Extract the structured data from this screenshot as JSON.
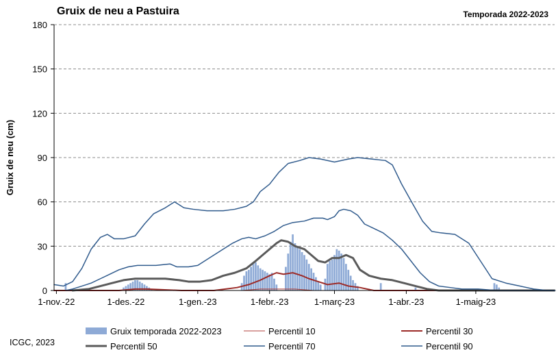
{
  "header": {
    "title": "Gruix de neu a Pastuira",
    "season": "Temporada 2022-2023"
  },
  "footer": {
    "credit": "ICGC, 2023"
  },
  "chart_data": {
    "type": "bar",
    "ylabel": "Gruix de neu (cm)",
    "xlabel": "",
    "ylim": [
      0,
      180
    ],
    "yticks": [
      0,
      30,
      60,
      90,
      120,
      150,
      180
    ],
    "grid": "horizontal dashed",
    "legend_position": "bottom",
    "x_domain": [
      "2022-10-31",
      "2023-06-04"
    ],
    "xticks": [
      {
        "date": "2022-11-01",
        "label": "1-nov.-22"
      },
      {
        "date": "2022-12-01",
        "label": "1-des.-22"
      },
      {
        "date": "2023-01-01",
        "label": "1-gen.-23"
      },
      {
        "date": "2023-02-01",
        "label": "1-febr.-23"
      },
      {
        "date": "2023-03-01",
        "label": "1-març-23"
      },
      {
        "date": "2023-04-01",
        "label": "1-abr.-23"
      },
      {
        "date": "2023-05-01",
        "label": "1-maig-23"
      }
    ],
    "bars": {
      "name": "Gruix temporada 2022-2023",
      "color": "#8eaad6",
      "points": [
        [
          "2022-11-05",
          5
        ],
        [
          "2022-11-30",
          2
        ],
        [
          "2022-12-01",
          3
        ],
        [
          "2022-12-02",
          4
        ],
        [
          "2022-12-03",
          5
        ],
        [
          "2022-12-04",
          6
        ],
        [
          "2022-12-05",
          7
        ],
        [
          "2022-12-06",
          7
        ],
        [
          "2022-12-07",
          6
        ],
        [
          "2022-12-08",
          5
        ],
        [
          "2022-12-09",
          4
        ],
        [
          "2022-12-10",
          3
        ],
        [
          "2022-12-11",
          2
        ],
        [
          "2022-12-12",
          1
        ],
        [
          "2023-01-20",
          5
        ],
        [
          "2023-01-21",
          10
        ],
        [
          "2023-01-22",
          13
        ],
        [
          "2023-01-23",
          14
        ],
        [
          "2023-01-24",
          16
        ],
        [
          "2023-01-25",
          18
        ],
        [
          "2023-01-26",
          19
        ],
        [
          "2023-01-27",
          17
        ],
        [
          "2023-01-28",
          15
        ],
        [
          "2023-01-29",
          14
        ],
        [
          "2023-01-30",
          13
        ],
        [
          "2023-01-31",
          12
        ],
        [
          "2023-02-01",
          11
        ],
        [
          "2023-02-02",
          12
        ],
        [
          "2023-02-03",
          8
        ],
        [
          "2023-02-04",
          4
        ],
        [
          "2023-02-08",
          16
        ],
        [
          "2023-02-09",
          25
        ],
        [
          "2023-02-10",
          33
        ],
        [
          "2023-02-11",
          38
        ],
        [
          "2023-02-12",
          32
        ],
        [
          "2023-02-13",
          29
        ],
        [
          "2023-02-14",
          28
        ],
        [
          "2023-02-15",
          26
        ],
        [
          "2023-02-16",
          24
        ],
        [
          "2023-02-17",
          21
        ],
        [
          "2023-02-18",
          18
        ],
        [
          "2023-02-19",
          15
        ],
        [
          "2023-02-20",
          12
        ],
        [
          "2023-02-21",
          9
        ],
        [
          "2023-02-22",
          6
        ],
        [
          "2023-02-23",
          4
        ],
        [
          "2023-02-25",
          8
        ],
        [
          "2023-02-26",
          18
        ],
        [
          "2023-02-27",
          20
        ],
        [
          "2023-02-28",
          21
        ],
        [
          "2023-03-01",
          24
        ],
        [
          "2023-03-02",
          28
        ],
        [
          "2023-03-03",
          27
        ],
        [
          "2023-03-04",
          25
        ],
        [
          "2023-03-05",
          22
        ],
        [
          "2023-03-06",
          18
        ],
        [
          "2023-03-07",
          14
        ],
        [
          "2023-03-08",
          10
        ],
        [
          "2023-03-09",
          7
        ],
        [
          "2023-03-10",
          5
        ],
        [
          "2023-03-11",
          3
        ],
        [
          "2023-03-21",
          5
        ],
        [
          "2023-04-05",
          2
        ],
        [
          "2023-05-09",
          5
        ],
        [
          "2023-05-10",
          4
        ],
        [
          "2023-05-11",
          2
        ]
      ]
    },
    "series": [
      {
        "name": "Percentil 10",
        "color": "#b2403c",
        "width": 1,
        "points": [
          [
            "2022-10-31",
            0
          ],
          [
            "2023-01-20",
            0
          ],
          [
            "2023-01-28",
            1
          ],
          [
            "2023-02-12",
            1
          ],
          [
            "2023-02-20",
            0
          ],
          [
            "2023-06-04",
            0
          ]
        ]
      },
      {
        "name": "Percentil 30",
        "color": "#9c2a27",
        "width": 2,
        "points": [
          [
            "2022-10-31",
            0
          ],
          [
            "2022-11-28",
            0
          ],
          [
            "2022-12-05",
            1
          ],
          [
            "2022-12-10",
            1
          ],
          [
            "2022-12-25",
            0
          ],
          [
            "2023-01-08",
            0
          ],
          [
            "2023-01-18",
            2
          ],
          [
            "2023-01-23",
            4
          ],
          [
            "2023-01-28",
            7
          ],
          [
            "2023-02-01",
            10
          ],
          [
            "2023-02-04",
            12
          ],
          [
            "2023-02-07",
            11
          ],
          [
            "2023-02-11",
            12
          ],
          [
            "2023-02-15",
            10
          ],
          [
            "2023-02-18",
            8
          ],
          [
            "2023-02-22",
            6
          ],
          [
            "2023-02-26",
            4
          ],
          [
            "2023-03-03",
            5
          ],
          [
            "2023-03-07",
            3
          ],
          [
            "2023-03-12",
            2
          ],
          [
            "2023-03-18",
            0
          ],
          [
            "2023-06-04",
            0
          ]
        ]
      },
      {
        "name": "Percentil 50",
        "color": "#5a5a5a",
        "width": 3,
        "points": [
          [
            "2022-11-08",
            0
          ],
          [
            "2022-11-15",
            1
          ],
          [
            "2022-11-20",
            3
          ],
          [
            "2022-11-25",
            5
          ],
          [
            "2022-11-30",
            7
          ],
          [
            "2022-12-05",
            8
          ],
          [
            "2022-12-12",
            8
          ],
          [
            "2022-12-18",
            8
          ],
          [
            "2022-12-24",
            7
          ],
          [
            "2022-12-28",
            6
          ],
          [
            "2023-01-02",
            6
          ],
          [
            "2023-01-07",
            7
          ],
          [
            "2023-01-12",
            10
          ],
          [
            "2023-01-17",
            12
          ],
          [
            "2023-01-22",
            15
          ],
          [
            "2023-01-26",
            20
          ],
          [
            "2023-01-29",
            24
          ],
          [
            "2023-02-01",
            28
          ],
          [
            "2023-02-04",
            32
          ],
          [
            "2023-02-06",
            34
          ],
          [
            "2023-02-09",
            33
          ],
          [
            "2023-02-12",
            30
          ],
          [
            "2023-02-16",
            28
          ],
          [
            "2023-02-19",
            24
          ],
          [
            "2023-02-22",
            20
          ],
          [
            "2023-02-25",
            19
          ],
          [
            "2023-02-28",
            22
          ],
          [
            "2023-03-03",
            22
          ],
          [
            "2023-03-06",
            24
          ],
          [
            "2023-03-09",
            22
          ],
          [
            "2023-03-12",
            14
          ],
          [
            "2023-03-16",
            10
          ],
          [
            "2023-03-21",
            8
          ],
          [
            "2023-03-26",
            7
          ],
          [
            "2023-03-31",
            5
          ],
          [
            "2023-04-05",
            3
          ],
          [
            "2023-04-10",
            1
          ],
          [
            "2023-04-15",
            0
          ],
          [
            "2023-06-04",
            0
          ]
        ]
      },
      {
        "name": "Percentil 70",
        "color": "#2f5a8c",
        "width": 1.5,
        "points": [
          [
            "2022-11-05",
            0
          ],
          [
            "2022-11-08",
            1
          ],
          [
            "2022-11-12",
            3
          ],
          [
            "2022-11-16",
            5
          ],
          [
            "2022-11-20",
            8
          ],
          [
            "2022-11-24",
            11
          ],
          [
            "2022-11-28",
            14
          ],
          [
            "2022-12-02",
            16
          ],
          [
            "2022-12-06",
            17
          ],
          [
            "2022-12-14",
            17
          ],
          [
            "2022-12-20",
            18
          ],
          [
            "2022-12-23",
            16
          ],
          [
            "2022-12-28",
            16
          ],
          [
            "2023-01-01",
            17
          ],
          [
            "2023-01-04",
            20
          ],
          [
            "2023-01-08",
            24
          ],
          [
            "2023-01-12",
            28
          ],
          [
            "2023-01-16",
            32
          ],
          [
            "2023-01-20",
            35
          ],
          [
            "2023-01-23",
            36
          ],
          [
            "2023-01-26",
            35
          ],
          [
            "2023-01-30",
            37
          ],
          [
            "2023-02-03",
            40
          ],
          [
            "2023-02-07",
            44
          ],
          [
            "2023-02-11",
            46
          ],
          [
            "2023-02-16",
            47
          ],
          [
            "2023-02-20",
            49
          ],
          [
            "2023-02-24",
            49
          ],
          [
            "2023-02-26",
            48
          ],
          [
            "2023-03-01",
            50
          ],
          [
            "2023-03-03",
            54
          ],
          [
            "2023-03-05",
            55
          ],
          [
            "2023-03-08",
            54
          ],
          [
            "2023-03-11",
            51
          ],
          [
            "2023-03-14",
            45
          ],
          [
            "2023-03-18",
            42
          ],
          [
            "2023-03-22",
            39
          ],
          [
            "2023-03-26",
            34
          ],
          [
            "2023-03-30",
            28
          ],
          [
            "2023-04-03",
            20
          ],
          [
            "2023-04-07",
            12
          ],
          [
            "2023-04-11",
            6
          ],
          [
            "2023-04-15",
            3
          ],
          [
            "2023-04-20",
            2
          ],
          [
            "2023-04-25",
            1
          ],
          [
            "2023-05-02",
            1
          ],
          [
            "2023-05-10",
            0
          ],
          [
            "2023-06-04",
            0
          ]
        ]
      },
      {
        "name": "Percentil 90",
        "color": "#2f5a8c",
        "width": 1.5,
        "points": [
          [
            "2022-10-31",
            4
          ],
          [
            "2022-11-04",
            3
          ],
          [
            "2022-11-08",
            6
          ],
          [
            "2022-11-12",
            15
          ],
          [
            "2022-11-16",
            28
          ],
          [
            "2022-11-20",
            36
          ],
          [
            "2022-11-23",
            38
          ],
          [
            "2022-11-26",
            35
          ],
          [
            "2022-11-30",
            35
          ],
          [
            "2022-12-05",
            37
          ],
          [
            "2022-12-09",
            45
          ],
          [
            "2022-12-13",
            52
          ],
          [
            "2022-12-18",
            56
          ],
          [
            "2022-12-22",
            60
          ],
          [
            "2022-12-26",
            56
          ],
          [
            "2022-12-30",
            55
          ],
          [
            "2023-01-05",
            54
          ],
          [
            "2023-01-12",
            54
          ],
          [
            "2023-01-17",
            55
          ],
          [
            "2023-01-22",
            57
          ],
          [
            "2023-01-25",
            60
          ],
          [
            "2023-01-28",
            67
          ],
          [
            "2023-02-01",
            72
          ],
          [
            "2023-02-05",
            80
          ],
          [
            "2023-02-09",
            86
          ],
          [
            "2023-02-14",
            88
          ],
          [
            "2023-02-18",
            90
          ],
          [
            "2023-02-23",
            89
          ],
          [
            "2023-03-01",
            87
          ],
          [
            "2023-03-07",
            89
          ],
          [
            "2023-03-11",
            90
          ],
          [
            "2023-03-17",
            89
          ],
          [
            "2023-03-23",
            88
          ],
          [
            "2023-03-26",
            85
          ],
          [
            "2023-03-30",
            72
          ],
          [
            "2023-04-04",
            58
          ],
          [
            "2023-04-08",
            47
          ],
          [
            "2023-04-12",
            40
          ],
          [
            "2023-04-16",
            39
          ],
          [
            "2023-04-22",
            38
          ],
          [
            "2023-04-28",
            32
          ],
          [
            "2023-05-03",
            20
          ],
          [
            "2023-05-08",
            8
          ],
          [
            "2023-05-14",
            5
          ],
          [
            "2023-05-20",
            3
          ],
          [
            "2023-05-26",
            1
          ],
          [
            "2023-06-01",
            0
          ],
          [
            "2023-06-04",
            0
          ]
        ]
      }
    ]
  }
}
